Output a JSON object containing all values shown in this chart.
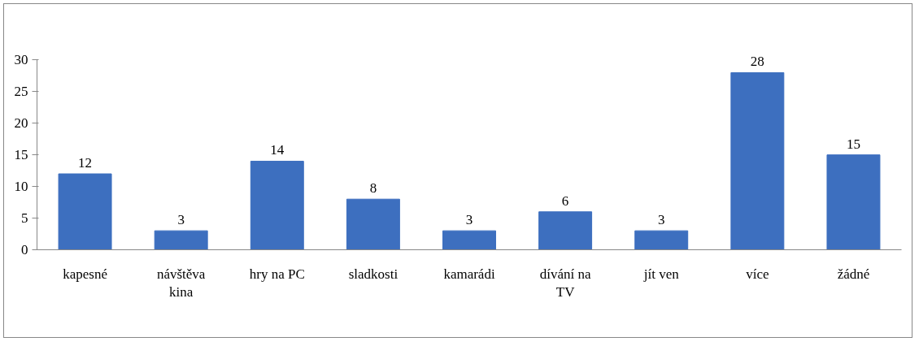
{
  "chart_data": {
    "type": "bar",
    "categories": [
      "kapesné",
      "návštěva kina",
      "hry na PC",
      "sladkosti",
      "kamarádi",
      "dívání na TV",
      "jít ven",
      "více",
      "žádné"
    ],
    "values": [
      12,
      3,
      14,
      8,
      3,
      6,
      3,
      28,
      15
    ],
    "color": "#3d6fbf",
    "ylim": [
      0,
      30
    ],
    "yticks": [
      0,
      5,
      10,
      15,
      20,
      25,
      30
    ],
    "data_labels": true,
    "grid": false,
    "legend": false
  }
}
